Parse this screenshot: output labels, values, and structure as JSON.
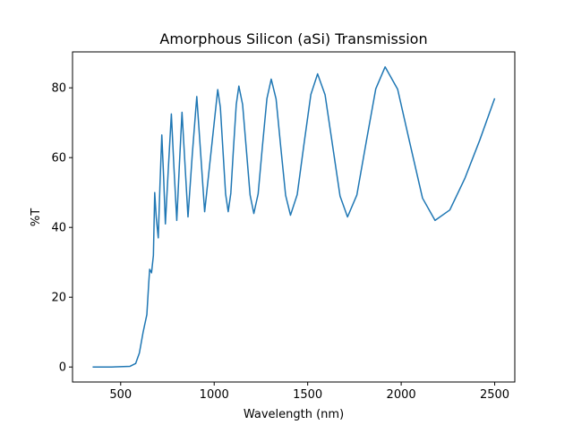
{
  "chart_data": {
    "type": "line",
    "title": "Amorphous Silicon (aSi) Transmission",
    "x_label": "Wavelength (nm)",
    "y_label": "%T",
    "x": [
      350,
      450,
      550,
      580,
      600,
      620,
      640,
      650,
      655,
      665,
      675,
      682,
      690,
      701,
      710,
      720,
      730,
      739,
      755,
      771,
      785,
      800,
      814,
      828,
      844,
      860,
      883,
      907,
      928,
      949,
      984,
      1019,
      1033,
      1047,
      1061,
      1075,
      1089,
      1103,
      1118,
      1132,
      1152,
      1172,
      1192,
      1212,
      1235,
      1258,
      1282,
      1305,
      1331,
      1356,
      1382,
      1408,
      1444,
      1480,
      1517,
      1553,
      1593,
      1633,
      1673,
      1713,
      1763,
      1813,
      1864,
      1914,
      1981,
      2047,
      2114,
      2181,
      2260,
      2340,
      2420,
      2500
    ],
    "series": [
      {
        "name": "%T",
        "color": "#1f77b4",
        "values": [
          0,
          0,
          0.2,
          1,
          4,
          10,
          15,
          24,
          28,
          27,
          32,
          50,
          43,
          37,
          52,
          66.5,
          54,
          41,
          57,
          72.5,
          57,
          42,
          58,
          73,
          58,
          43,
          61,
          77.5,
          61,
          44.5,
          62,
          79.5,
          74.4,
          62,
          49.6,
          44.5,
          49.8,
          62.5,
          75.2,
          80.5,
          75.2,
          62.3,
          49.3,
          44,
          49.6,
          63.3,
          76.9,
          82.5,
          76.8,
          63,
          49.2,
          43.5,
          49.4,
          63.8,
          78.1,
          84,
          78,
          63.5,
          49,
          43,
          49.3,
          64.5,
          79.7,
          86,
          79.6,
          64,
          48.4,
          42,
          45,
          54,
          65,
          77
        ]
      }
    ],
    "xlim": [
      242.5,
      2607.5
    ],
    "ylim": [
      -4.3,
      90.3
    ],
    "xticks": [
      500,
      1000,
      1500,
      2000,
      2500
    ],
    "yticks": [
      0,
      20,
      40,
      60,
      80
    ]
  }
}
